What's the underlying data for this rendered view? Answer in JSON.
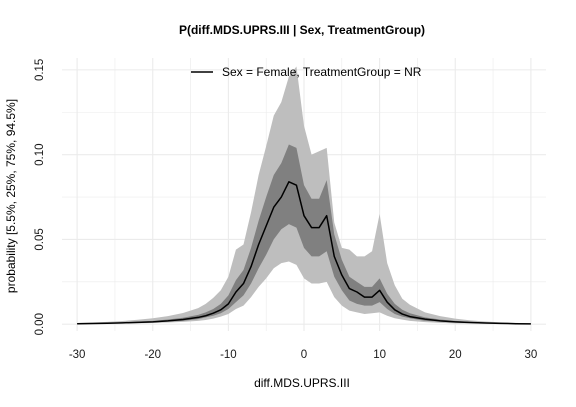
{
  "chart_data": {
    "type": "area",
    "title": "P(diff.MDS.UPRS.III | Sex, TreatmentGroup)",
    "xlabel": "diff.MDS.UPRS.III",
    "ylabel": "probability [5.5%, 25%, 75%, 94.5%]",
    "xlim": [
      -32,
      32
    ],
    "ylim": [
      -0.004,
      0.157
    ],
    "xticks": [
      "-30",
      "-20",
      "-10",
      "0",
      "10",
      "20",
      "30"
    ],
    "yticks": [
      "0.00",
      "0.05",
      "0.10",
      "0.15"
    ],
    "grid": true,
    "legend_position": "top",
    "colors": {
      "outer_band": "#bebebe",
      "inner_band": "#808080",
      "median_line": "#000000",
      "grid": "#ebebeb"
    },
    "series": [
      {
        "name": "Sex = Female, TreatmentGroup = NR",
        "x": [
          -30,
          -28,
          -26,
          -24,
          -22,
          -20,
          -18,
          -16,
          -14,
          -13,
          -12,
          -11,
          -10,
          -9,
          -8,
          -7,
          -6,
          -5,
          -4,
          -3,
          -2,
          -1,
          0,
          1,
          2,
          3,
          4,
          5,
          6,
          7,
          8,
          9,
          10,
          11,
          12,
          13,
          14,
          16,
          18,
          20,
          22,
          24,
          26,
          28,
          30
        ],
        "median": [
          0.0003,
          0.0004,
          0.0006,
          0.0008,
          0.0011,
          0.0014,
          0.002,
          0.0028,
          0.004,
          0.005,
          0.0065,
          0.0085,
          0.012,
          0.019,
          0.024,
          0.034,
          0.047,
          0.058,
          0.069,
          0.075,
          0.084,
          0.082,
          0.064,
          0.057,
          0.057,
          0.064,
          0.04,
          0.029,
          0.021,
          0.019,
          0.016,
          0.016,
          0.02,
          0.013,
          0.0085,
          0.006,
          0.0045,
          0.003,
          0.002,
          0.0014,
          0.001,
          0.0007,
          0.0005,
          0.0003,
          0.0002
        ],
        "q25": [
          0.0002,
          0.0003,
          0.0004,
          0.0006,
          0.0008,
          0.001,
          0.0015,
          0.002,
          0.003,
          0.004,
          0.005,
          0.0065,
          0.009,
          0.013,
          0.017,
          0.024,
          0.033,
          0.041,
          0.05,
          0.056,
          0.059,
          0.057,
          0.045,
          0.04,
          0.04,
          0.043,
          0.028,
          0.02,
          0.014,
          0.012,
          0.011,
          0.011,
          0.013,
          0.009,
          0.006,
          0.0045,
          0.0035,
          0.002,
          0.0015,
          0.001,
          0.0007,
          0.0005,
          0.0004,
          0.0002,
          0.0001
        ],
        "q75": [
          0.0004,
          0.0006,
          0.0008,
          0.0011,
          0.0015,
          0.002,
          0.0028,
          0.0038,
          0.0055,
          0.007,
          0.009,
          0.012,
          0.017,
          0.026,
          0.032,
          0.045,
          0.061,
          0.075,
          0.088,
          0.095,
          0.106,
          0.104,
          0.082,
          0.074,
          0.074,
          0.085,
          0.053,
          0.038,
          0.028,
          0.025,
          0.022,
          0.022,
          0.027,
          0.018,
          0.012,
          0.0085,
          0.0065,
          0.004,
          0.0028,
          0.002,
          0.0014,
          0.001,
          0.0007,
          0.0005,
          0.0003
        ],
        "q055": [
          0.0001,
          0.0002,
          0.0003,
          0.0004,
          0.0005,
          0.0007,
          0.001,
          0.0014,
          0.002,
          0.0025,
          0.0033,
          0.0045,
          0.006,
          0.009,
          0.011,
          0.016,
          0.022,
          0.027,
          0.033,
          0.036,
          0.037,
          0.035,
          0.027,
          0.024,
          0.024,
          0.025,
          0.016,
          0.011,
          0.008,
          0.007,
          0.006,
          0.0065,
          0.007,
          0.005,
          0.0035,
          0.0027,
          0.002,
          0.0012,
          0.0008,
          0.0005,
          0.0004,
          0.0003,
          0.0002,
          0.0001,
          0.0001
        ],
        "q945": [
          0.0007,
          0.001,
          0.0014,
          0.0019,
          0.0026,
          0.0035,
          0.0048,
          0.0066,
          0.0095,
          0.012,
          0.0155,
          0.02,
          0.028,
          0.044,
          0.047,
          0.066,
          0.088,
          0.105,
          0.123,
          0.131,
          0.146,
          0.152,
          0.117,
          0.1,
          0.102,
          0.104,
          0.06,
          0.045,
          0.044,
          0.04,
          0.04,
          0.043,
          0.065,
          0.036,
          0.023,
          0.015,
          0.0115,
          0.007,
          0.0048,
          0.0033,
          0.0023,
          0.0016,
          0.0011,
          0.0008,
          0.0005
        ]
      }
    ]
  }
}
